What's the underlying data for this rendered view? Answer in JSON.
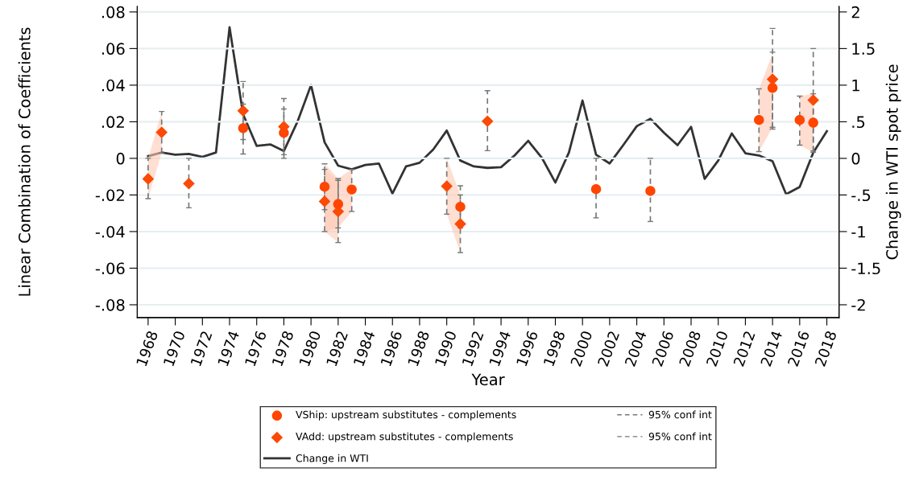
{
  "chart_data": {
    "type": "scatter",
    "xlabel": "Year",
    "ylabel": "Linear Combination of Coefficients",
    "y2label": "Change in WTI spot price",
    "xlim": [
      1967.2,
      2018.9
    ],
    "xticks": [
      1968,
      1970,
      1972,
      1974,
      1976,
      1978,
      1980,
      1982,
      1984,
      1986,
      1988,
      1990,
      1992,
      1994,
      1996,
      1998,
      2000,
      2002,
      2004,
      2006,
      2008,
      2010,
      2012,
      2014,
      2016,
      2018
    ],
    "ylim": [
      -0.087,
      0.083
    ],
    "yticks": [
      {
        "value": 0.08,
        "label": ".08"
      },
      {
        "value": 0.06,
        "label": ".06"
      },
      {
        "value": 0.04,
        "label": ".04"
      },
      {
        "value": 0.02,
        "label": ".02"
      },
      0,
      {
        "value": -0.02,
        "label": "-.02"
      },
      {
        "value": -0.04,
        "label": "-.04"
      },
      {
        "value": -0.06,
        "label": "-.06"
      },
      {
        "value": -0.08,
        "label": "-.08"
      }
    ],
    "y2lim": [
      -2.175,
      2.075
    ],
    "y2ticks": [
      2,
      1.5,
      1,
      {
        "value": 0.5,
        "label": ".5"
      },
      0,
      {
        "value": -0.5,
        "label": "-.5"
      },
      -1,
      -1.5,
      -2
    ],
    "grid": "y",
    "legend": "bottom",
    "annotations": [
      "95% conf int",
      "95% conf int"
    ],
    "series": [
      {
        "name": "VShip: upstream substitutes - complements",
        "marker": "circle",
        "color": "#ff4500",
        "x": [
          1975,
          1978,
          1981,
          1982,
          1983,
          1991,
          2001,
          2005,
          2013,
          2014,
          2016,
          2017
        ],
        "values": [
          0.0165,
          0.014,
          -0.0155,
          -0.025,
          -0.017,
          -0.0265,
          -0.0168,
          -0.0178,
          0.021,
          0.0385,
          0.021,
          0.0195
        ],
        "errors": [
          [
            0.0103,
            0.0296
          ],
          [
            0.002,
            0.027
          ],
          [
            -0.028,
            -0.003
          ],
          [
            -0.038,
            -0.011
          ],
          [
            -0.029,
            -0.006
          ],
          [
            -0.038,
            -0.015
          ],
          [
            -0.0325,
            0
          ],
          [
            -0.0345,
            0
          ],
          [
            0.0037,
            0.038
          ],
          [
            0.017,
            0.058
          ],
          [
            0.0072,
            0.034
          ],
          [
            0.0033,
            0.0353
          ]
        ],
        "lower": [
          null,
          null,
          -0.04,
          -0.038,
          -0.029,
          null,
          null,
          null,
          0.0037,
          0.017,
          0.0072,
          0.0033
        ],
        "upper": [
          null,
          null,
          -0.003,
          -0.011,
          -0.006,
          null,
          null,
          null,
          0.038,
          0.057,
          0.034,
          0.0353
        ]
      },
      {
        "name": "VAdd: upstream substitutes - complements",
        "marker": "diamond",
        "color": "#fa4a05",
        "x": [
          1968,
          1969,
          1971,
          1975,
          1978,
          1981,
          1982,
          1990,
          1991,
          1993,
          2014,
          2017
        ],
        "values": [
          -0.0112,
          0.0142,
          -0.0138,
          0.026,
          0.0173,
          -0.0235,
          -0.029,
          -0.0152,
          -0.0358,
          0.0203,
          0.0432,
          0.0318
        ],
        "errors": [
          [
            -0.022,
            0
          ],
          [
            0.003,
            0.0256
          ],
          [
            -0.027,
            0
          ],
          [
            0.0024,
            0.042
          ],
          [
            0.0,
            0.0327
          ],
          [
            -0.04,
            -0.006
          ],
          [
            -0.046,
            -0.012
          ],
          [
            -0.0305,
            0
          ],
          [
            -0.0515,
            -0.02
          ],
          [
            0.0042,
            0.037
          ],
          [
            0.016,
            0.071
          ],
          [
            0.004,
            0.06
          ]
        ],
        "lower": [
          -0.022,
          0.003,
          null,
          null,
          null,
          -0.04,
          -0.046,
          -0.0305,
          -0.0515,
          null,
          null,
          null
        ],
        "upper": [
          0,
          0.0256,
          null,
          null,
          null,
          -0.006,
          -0.012,
          0,
          -0.02,
          null,
          null,
          null
        ]
      },
      {
        "name": "Change in WTI",
        "type": "line",
        "axis": "y2",
        "color": "#333333",
        "line_style": "solid",
        "marker": "none",
        "x": [
          1968,
          1969,
          1970,
          1971,
          1972,
          1973,
          1974,
          1975,
          1976,
          1977,
          1978,
          1979,
          1980,
          1981,
          1982,
          1983,
          1984,
          1985,
          1986,
          1987,
          1988,
          1989,
          1990,
          1991,
          1992,
          1993,
          1994,
          1995,
          1996,
          1997,
          1998,
          1999,
          2000,
          2001,
          2002,
          2003,
          2004,
          2005,
          2006,
          2007,
          2008,
          2009,
          2010,
          2011,
          2012,
          2013,
          2014,
          2015,
          2016,
          2017,
          2018
        ],
        "values": [
          0.03,
          0.08,
          0.05,
          0.06,
          0.02,
          0.08,
          1.79,
          0.6,
          0.17,
          0.19,
          0.1,
          0.5,
          1.0,
          0.22,
          -0.1,
          -0.15,
          -0.09,
          -0.07,
          -0.48,
          -0.11,
          -0.06,
          0.12,
          0.38,
          -0.03,
          -0.11,
          -0.13,
          -0.12,
          0.04,
          0.24,
          0.01,
          -0.33,
          0.08,
          0.79,
          0.05,
          -0.07,
          0.18,
          0.44,
          0.54,
          0.35,
          0.18,
          0.43,
          -0.28,
          -0.03,
          0.34,
          0.07,
          0.04,
          -0.04,
          -0.49,
          -0.39,
          0.08,
          0.37
        ]
      }
    ]
  }
}
